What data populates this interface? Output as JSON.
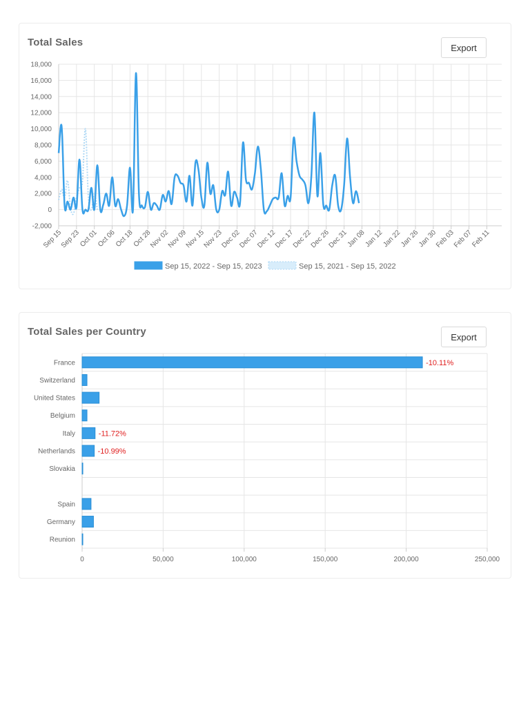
{
  "colors": {
    "primary": "#3aa0e8",
    "previous": "#aed8f5",
    "grid": "#e5e5e5",
    "negative": "#e02020"
  },
  "sales_card": {
    "title": "Total Sales",
    "export_label": "Export"
  },
  "country_card": {
    "title": "Total Sales per Country",
    "export_label": "Export"
  },
  "chart_data": [
    {
      "type": "line",
      "title": "Total Sales",
      "ylim": [
        -2000,
        18000
      ],
      "yticks": [
        -2000,
        0,
        2000,
        4000,
        6000,
        8000,
        10000,
        12000,
        14000,
        16000,
        18000
      ],
      "ytick_labels": [
        "-2,000",
        "0",
        "2,000",
        "4,000",
        "6,000",
        "8,000",
        "10,000",
        "12,000",
        "14,000",
        "16,000",
        "18,000"
      ],
      "xlim": [
        0,
        149
      ],
      "xtick_positions": [
        0,
        6,
        12,
        18,
        24,
        30,
        36,
        42,
        48,
        54,
        60,
        66,
        72,
        78,
        84,
        90,
        96,
        102,
        108,
        114,
        120,
        126,
        132,
        138,
        144
      ],
      "xtick_labels": [
        "Sep 15",
        "Sep 23",
        "Oct 01",
        "Oct 06",
        "Oct 18",
        "Oct 28",
        "Nov 02",
        "Nov 09",
        "Nov 15",
        "Nov 23",
        "Dec 02",
        "Dec 07",
        "Dec 12",
        "Dec 17",
        "Dec 22",
        "Dec 26",
        "Dec 31",
        "Jan 08",
        "Jan 12",
        "Jan 22",
        "Jan 26",
        "Jan 30",
        "Feb 03",
        "Feb 07",
        "Feb 11"
      ],
      "legend_position": "bottom",
      "grid": true,
      "series": [
        {
          "name": "Sep 15, 2022 - Sep 15, 2023",
          "style": "solid",
          "points": [
            [
              0,
              7000
            ],
            [
              1,
              10300
            ],
            [
              2,
              500
            ],
            [
              3,
              1000
            ],
            [
              4,
              0
            ],
            [
              5,
              1500
            ],
            [
              6,
              300
            ],
            [
              7,
              6200
            ],
            [
              8,
              0
            ],
            [
              9,
              0
            ],
            [
              10,
              0
            ],
            [
              11,
              2700
            ],
            [
              12,
              0
            ],
            [
              13,
              5500
            ],
            [
              14,
              0
            ],
            [
              15,
              600
            ],
            [
              16,
              2000
            ],
            [
              17,
              500
            ],
            [
              18,
              4000
            ],
            [
              19,
              500
            ],
            [
              20,
              1300
            ],
            [
              21,
              0
            ],
            [
              22,
              -800
            ],
            [
              23,
              500
            ],
            [
              24,
              5200
            ],
            [
              25,
              0
            ],
            [
              26,
              16900
            ],
            [
              27,
              2000
            ],
            [
              28,
              500
            ],
            [
              29,
              300
            ],
            [
              30,
              2200
            ],
            [
              31,
              0
            ],
            [
              32,
              800
            ],
            [
              33,
              500
            ],
            [
              34,
              0
            ],
            [
              35,
              1800
            ],
            [
              36,
              1000
            ],
            [
              37,
              2300
            ],
            [
              38,
              700
            ],
            [
              39,
              4000
            ],
            [
              40,
              4200
            ],
            [
              41,
              3300
            ],
            [
              42,
              3000
            ],
            [
              43,
              1000
            ],
            [
              44,
              4200
            ],
            [
              45,
              500
            ],
            [
              46,
              5800
            ],
            [
              47,
              5000
            ],
            [
              48,
              1500
            ],
            [
              49,
              500
            ],
            [
              50,
              5800
            ],
            [
              51,
              2000
            ],
            [
              52,
              3000
            ],
            [
              53,
              0
            ],
            [
              54,
              0
            ],
            [
              55,
              2300
            ],
            [
              56,
              1800
            ],
            [
              57,
              4700
            ],
            [
              58,
              500
            ],
            [
              59,
              2200
            ],
            [
              60,
              1500
            ],
            [
              61,
              800
            ],
            [
              62,
              8300
            ],
            [
              63,
              3700
            ],
            [
              64,
              3300
            ],
            [
              65,
              2500
            ],
            [
              66,
              4500
            ],
            [
              67,
              7800
            ],
            [
              68,
              5000
            ],
            [
              69,
              0
            ],
            [
              70,
              -200
            ],
            [
              71,
              500
            ],
            [
              72,
              1300
            ],
            [
              73,
              1500
            ],
            [
              74,
              1500
            ],
            [
              75,
              4500
            ],
            [
              76,
              500
            ],
            [
              77,
              1700
            ],
            [
              78,
              1500
            ],
            [
              79,
              8800
            ],
            [
              80,
              6000
            ],
            [
              81,
              4200
            ],
            [
              82,
              3700
            ],
            [
              83,
              3000
            ],
            [
              84,
              800
            ],
            [
              85,
              4200
            ],
            [
              86,
              12000
            ],
            [
              87,
              1700
            ],
            [
              88,
              7000
            ],
            [
              89,
              600
            ],
            [
              90,
              500
            ],
            [
              91,
              0
            ],
            [
              92,
              3000
            ],
            [
              93,
              4200
            ],
            [
              94,
              500
            ],
            [
              95,
              0
            ],
            [
              96,
              3000
            ],
            [
              97,
              8800
            ],
            [
              98,
              4000
            ],
            [
              99,
              800
            ],
            [
              100,
              2300
            ],
            [
              101,
              800
            ]
          ]
        },
        {
          "name": "Sep 15, 2021 - Sep 15, 2022",
          "style": "dotted",
          "points": [
            [
              0,
              1200
            ],
            [
              1,
              2500
            ],
            [
              2,
              1500
            ],
            [
              3,
              3600
            ],
            [
              4,
              200
            ],
            [
              5,
              -500
            ],
            [
              6,
              1500
            ],
            [
              7,
              2700
            ],
            [
              8,
              3500
            ],
            [
              9,
              10000
            ],
            [
              10,
              1500
            ],
            [
              11,
              0
            ],
            [
              12,
              2000
            ],
            [
              13,
              0
            ]
          ]
        }
      ]
    },
    {
      "type": "bar",
      "orientation": "horizontal",
      "title": "Total Sales per Country",
      "categories": [
        "France",
        "Switzerland",
        "United States",
        "Belgium",
        "Italy",
        "Netherlands",
        "Slovakia",
        "",
        "Spain",
        "Germany",
        "Reunion"
      ],
      "values": [
        210000,
        3000,
        10500,
        3000,
        8000,
        7500,
        300,
        0,
        5500,
        7000,
        200
      ],
      "data_labels": [
        "-10.11%",
        "",
        "",
        "",
        "-11.72%",
        "-10.99%",
        "",
        "",
        "",
        "",
        ""
      ],
      "xlim": [
        0,
        250000
      ],
      "xticks": [
        0,
        50000,
        100000,
        150000,
        200000,
        250000
      ],
      "xtick_labels": [
        "0",
        "50,000",
        "100,000",
        "150,000",
        "200,000",
        "250,000"
      ],
      "grid": true
    }
  ]
}
